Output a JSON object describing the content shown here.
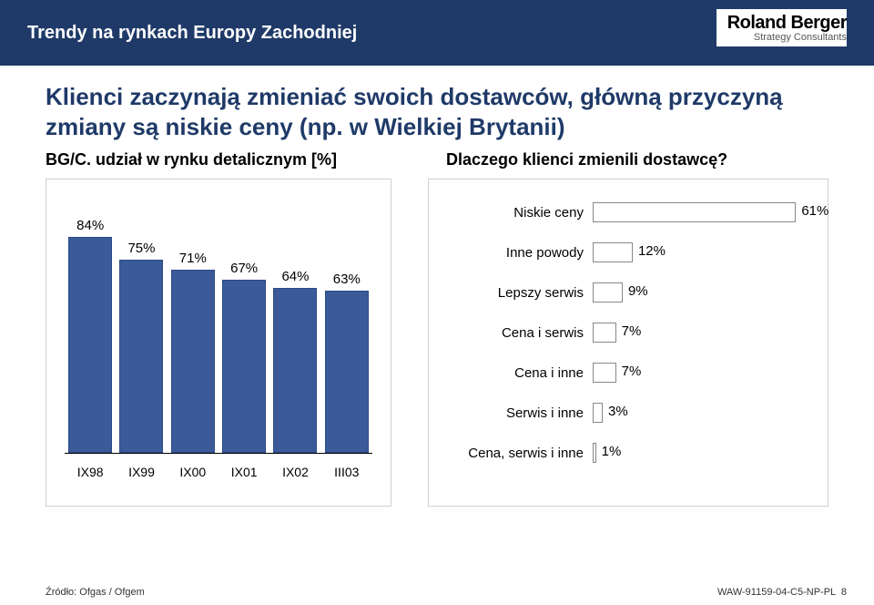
{
  "header": {
    "section_title": "Trendy na rynkach Europy Zachodniej",
    "logo_main": "Roland Berger",
    "logo_sub": "Strategy Consultants",
    "bg_color": "#1f3a68"
  },
  "headline": "Klienci zaczynają zmieniać swoich dostawców, główną przyczyną zmiany są niskie ceny (np. w Wielkiej Brytanii)",
  "left_subtitle": "BG/C. udział w rynku detalicznym [%]",
  "right_subtitle": "Dlaczego klienci zmienili dostawcę?",
  "bar_chart": {
    "type": "bar",
    "categories": [
      "IX98",
      "IX99",
      "IX00",
      "IX01",
      "IX02",
      "III03"
    ],
    "values": [
      84,
      75,
      71,
      67,
      64,
      63
    ],
    "value_labels": [
      "84%",
      "75%",
      "71%",
      "67%",
      "64%",
      "63%"
    ],
    "bar_color": "#3a5a98",
    "bar_border": "#2a4a88",
    "ylim": [
      0,
      100
    ],
    "background": "#ffffff",
    "axis_color": "#000000",
    "label_fontsize": 15
  },
  "hbar_chart": {
    "type": "hbar",
    "items": [
      {
        "label": "Niskie ceny",
        "value": 61,
        "vlabel": "61%"
      },
      {
        "label": "Inne powody",
        "value": 12,
        "vlabel": "12%"
      },
      {
        "label": "Lepszy serwis",
        "value": 9,
        "vlabel": "9%"
      },
      {
        "label": "Cena i serwis",
        "value": 7,
        "vlabel": "7%"
      },
      {
        "label": "Cena i inne",
        "value": 7,
        "vlabel": "7%"
      },
      {
        "label": "Serwis i inne",
        "value": 3,
        "vlabel": "3%"
      },
      {
        "label": "Cena, serwis i inne",
        "value": 1,
        "vlabel": "1%"
      }
    ],
    "xlim": [
      0,
      65
    ],
    "bar_fill": "#ffffff",
    "bar_border": "#888888",
    "background": "#ffffff",
    "label_fontsize": 15
  },
  "footer": {
    "source": "Źródło: Ofgas / Ofgem",
    "code": "WAW-91159-04-C5-NP-PL",
    "page": "8"
  }
}
